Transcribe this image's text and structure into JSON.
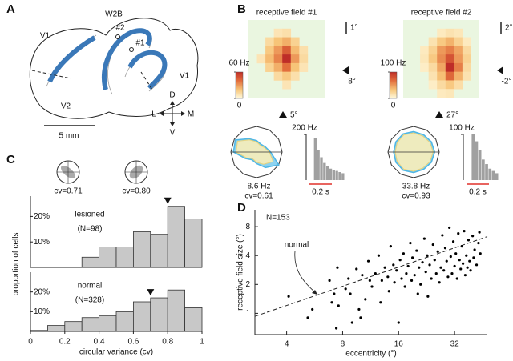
{
  "figure": {
    "panel_labels": [
      "A",
      "B",
      "C",
      "D"
    ],
    "anatomy": {
      "title": "W2B",
      "areas": [
        "V1",
        "V1",
        "V2"
      ],
      "sites": [
        "#2",
        "#1"
      ],
      "scale_bar": "5 mm",
      "compass": {
        "up": "D",
        "down": "V",
        "left": "L",
        "right": "M"
      }
    },
    "cv_examples": [
      "cv=0.71",
      "cv=0.80"
    ]
  },
  "chart_data": [
    {
      "type": "heatmap",
      "title": "receptive field #1",
      "scale_label": "1°",
      "y_marker_label": "8°",
      "x_marker_label": "5°",
      "clim": [
        0,
        60
      ],
      "cticks": [
        0,
        {
          "value": 60,
          "label": "60 Hz"
        }
      ],
      "values": [
        [
          null,
          null,
          null,
          null,
          null,
          null,
          null,
          null,
          null
        ],
        [
          null,
          null,
          null,
          8,
          10,
          null,
          null,
          null,
          null
        ],
        [
          null,
          null,
          12,
          20,
          25,
          15,
          null,
          null,
          null
        ],
        [
          null,
          null,
          18,
          30,
          45,
          22,
          10,
          null,
          null
        ],
        [
          null,
          8,
          22,
          35,
          60,
          30,
          12,
          null,
          null
        ],
        [
          null,
          null,
          15,
          25,
          40,
          20,
          8,
          null,
          null
        ],
        [
          null,
          null,
          null,
          12,
          18,
          10,
          null,
          null,
          null
        ],
        [
          null,
          null,
          null,
          null,
          8,
          null,
          null,
          null,
          null
        ],
        [
          null,
          null,
          null,
          null,
          null,
          null,
          null,
          null,
          null
        ]
      ]
    },
    {
      "type": "heatmap",
      "title": "receptive field #2",
      "scale_label": "2°",
      "y_marker_label": "-2°",
      "x_marker_label": "27°",
      "clim": [
        0,
        100
      ],
      "cticks": [
        0,
        {
          "value": 100,
          "label": "100 Hz"
        }
      ],
      "values": [
        [
          null,
          null,
          null,
          null,
          null,
          null,
          null,
          null,
          null
        ],
        [
          null,
          null,
          null,
          null,
          10,
          15,
          12,
          null,
          null
        ],
        [
          null,
          null,
          null,
          15,
          30,
          40,
          25,
          10,
          null
        ],
        [
          null,
          null,
          10,
          25,
          50,
          60,
          45,
          20,
          null
        ],
        [
          null,
          null,
          12,
          30,
          55,
          80,
          50,
          25,
          null
        ],
        [
          null,
          null,
          8,
          20,
          45,
          100,
          60,
          20,
          null
        ],
        [
          null,
          null,
          null,
          15,
          35,
          70,
          40,
          15,
          null
        ],
        [
          null,
          null,
          null,
          8,
          20,
          30,
          18,
          null,
          null
        ],
        [
          null,
          null,
          null,
          null,
          10,
          12,
          null,
          null,
          null
        ]
      ]
    },
    {
      "type": "polar",
      "rate_label": "8.6 Hz",
      "cv_label": "cv=0.61",
      "rlim": [
        0,
        1
      ],
      "series": [
        {
          "color": "#7fcdee",
          "values": [
            0.55,
            0.4,
            0.35,
            0.45,
            0.6,
            0.95,
            0.9,
            0.5,
            0.35,
            0.45,
            0.7,
            1.0
          ]
        },
        {
          "color": "#f8edb8",
          "values": [
            0.5,
            0.35,
            0.3,
            0.4,
            0.55,
            0.85,
            0.8,
            0.45,
            0.3,
            0.4,
            0.55,
            0.75
          ]
        }
      ]
    },
    {
      "type": "polar",
      "rate_label": "33.8 Hz",
      "cv_label": "cv=0.93",
      "rlim": [
        0,
        1
      ],
      "series": [
        {
          "color": "#7fcdee",
          "values": [
            0.82,
            0.8,
            0.78,
            0.8,
            0.82,
            0.8,
            0.78,
            0.8,
            0.82,
            0.8,
            0.78,
            0.8
          ]
        },
        {
          "color": "#f8edb8",
          "values": [
            0.76,
            0.74,
            0.72,
            0.75,
            0.77,
            0.74,
            0.72,
            0.74,
            0.77,
            0.75,
            0.72,
            0.74
          ]
        }
      ]
    },
    {
      "type": "psth",
      "ylim": [
        0,
        200
      ],
      "yticks": [
        {
          "value": 200,
          "label": "200 Hz"
        }
      ],
      "time_label": "0.2 s",
      "color": "#a0a0a0",
      "values": [
        0,
        0,
        185,
        130,
        100,
        75,
        60,
        50,
        45,
        40,
        35,
        30
      ]
    },
    {
      "type": "psth",
      "ylim": [
        0,
        100
      ],
      "yticks": [
        {
          "value": 100,
          "label": "100 Hz"
        }
      ],
      "time_label": "0.2 s",
      "color": "#a0a0a0",
      "values": [
        0,
        0,
        100,
        85,
        65,
        45,
        35,
        25,
        20,
        15
      ]
    },
    {
      "type": "histogram",
      "label": "lesioned",
      "n_label": "(N=98)",
      "color": "#c8c8c8",
      "bins": [
        0,
        0.1,
        0.2,
        0.3,
        0.4,
        0.5,
        0.6,
        0.7,
        0.8,
        0.9,
        1
      ],
      "values": [
        0,
        0,
        0,
        4,
        8,
        8,
        14,
        13,
        24,
        19
      ],
      "median": 0.8,
      "xlim": [
        0,
        1
      ],
      "ylim": [
        0,
        28
      ],
      "yticks": [
        {
          "value": 10,
          "label": "10%"
        },
        {
          "value": 20,
          "label": "20%"
        }
      ]
    },
    {
      "type": "histogram",
      "label": "normal",
      "n_label": "(N=328)",
      "color": "#c8c8c8",
      "bins": [
        0,
        0.1,
        0.2,
        0.3,
        0.4,
        0.5,
        0.6,
        0.7,
        0.8,
        0.9,
        1
      ],
      "values": [
        0.5,
        3,
        5,
        7,
        8,
        10,
        15,
        17,
        21,
        12
      ],
      "median": 0.7,
      "xlim": [
        0,
        1
      ],
      "ylim": [
        0,
        30
      ],
      "xticks": [
        0,
        0.2,
        0.4,
        0.6,
        0.8,
        1
      ],
      "yticks": [
        {
          "value": 10,
          "label": "10%"
        },
        {
          "value": 20,
          "label": "20%"
        }
      ],
      "xlabel": "circular variance (cv)",
      "ylabel": "proportion of cells"
    },
    {
      "type": "scatter",
      "annotation": "N=153",
      "xlabel": "eccentricity (°)",
      "ylabel": "receptive field size (°)",
      "xscale": "log",
      "yscale": "log",
      "xlim": [
        2.7,
        48
      ],
      "ylim": [
        0.6,
        12
      ],
      "xticks": [
        4,
        8,
        16,
        32
      ],
      "yticks": [
        1,
        2,
        4,
        8
      ],
      "color": "#000000",
      "fit": {
        "name": "normal",
        "x": [
          2.7,
          48
        ],
        "values": [
          0.93,
          6.3
        ]
      },
      "x": [
        4.1,
        5.5,
        6.8,
        7.0,
        7.2,
        7.4,
        7.6,
        7.5,
        8.3,
        8.6,
        8.8,
        9.0,
        9.5,
        9.8,
        10.2,
        10.6,
        11,
        11.2,
        11.5,
        12,
        12.5,
        12.8,
        13,
        13.5,
        14,
        14.2,
        14.5,
        15,
        15.2,
        15.6,
        16,
        16.3,
        16.6,
        17,
        17.3,
        17.6,
        18,
        18.5,
        18.8,
        19,
        19.5,
        20,
        20.3,
        20.6,
        21,
        21.5,
        22,
        22.4,
        22.8,
        23,
        23.5,
        24,
        24.5,
        25,
        25.5,
        26,
        26.5,
        27,
        27.5,
        28,
        28.5,
        29,
        29.5,
        30,
        30.5,
        31,
        31.5,
        32,
        32.5,
        33,
        33.5,
        34,
        34.5,
        35,
        35.5,
        36,
        36.5,
        37,
        37.5,
        38,
        38.5,
        39,
        40,
        40.5,
        41,
        42,
        43,
        43.5,
        44,
        10,
        5.2
      ],
      "values": [
        1.5,
        1.1,
        2.2,
        1.3,
        1.6,
        0.7,
        1.2,
        3.0,
        1.8,
        2.3,
        1.6,
        0.8,
        2.9,
        1.1,
        2.5,
        1.4,
        3.5,
        2.2,
        1.9,
        2.6,
        4.0,
        1.3,
        2.2,
        3.0,
        2.4,
        1.7,
        5.0,
        3.2,
        2.1,
        2.8,
        0.8,
        3.6,
        2.3,
        4.2,
        1.9,
        2.6,
        3.1,
        5.4,
        2.2,
        3.8,
        2.5,
        4.5,
        1.6,
        3.0,
        2.0,
        3.4,
        6.0,
        2.7,
        4.0,
        1.5,
        3.2,
        2.3,
        5.2,
        3.6,
        2.6,
        4.4,
        2.1,
        3.0,
        6.5,
        2.8,
        4.8,
        3.5,
        2.4,
        7.8,
        3.9,
        2.6,
        5.6,
        3.1,
        4.2,
        2.3,
        6.8,
        3.6,
        2.9,
        5.0,
        3.3,
        7.2,
        2.5,
        4.0,
        3.0,
        5.8,
        3.5,
        2.8,
        6.4,
        3.8,
        4.6,
        3.2,
        5.4,
        7.0,
        4.2,
        0.9,
        0.9
      ]
    }
  ]
}
